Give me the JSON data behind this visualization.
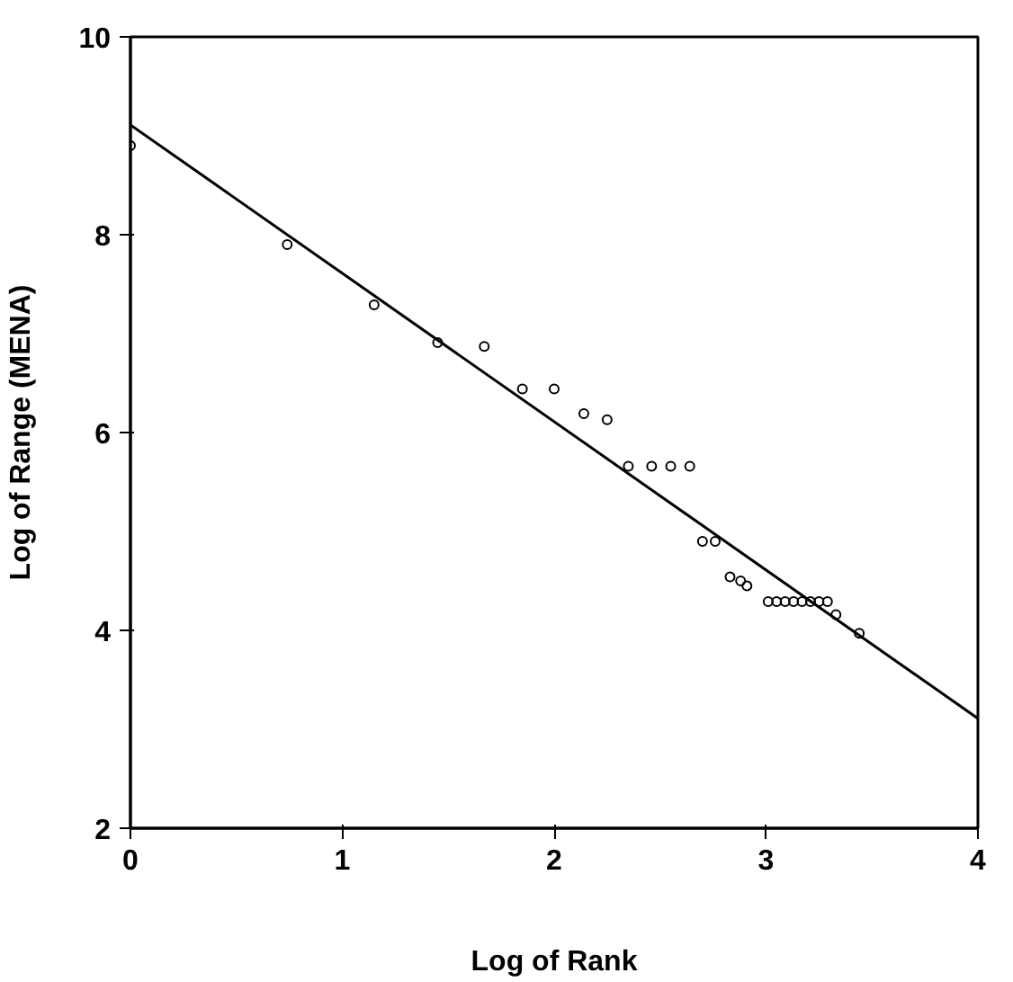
{
  "chart_data": {
    "type": "scatter",
    "xlabel": "Log of Rank",
    "ylabel": "Log of Range (MENA)",
    "xlim": [
      0,
      4
    ],
    "ylim": [
      2,
      10
    ],
    "xticks": [
      0,
      1,
      2,
      3,
      4
    ],
    "yticks": [
      2,
      4,
      6,
      8,
      10
    ],
    "grid": false,
    "marker": "circle",
    "series": [
      {
        "color": "#000000",
        "x": [
          0,
          0.74,
          1.15,
          1.45,
          1.67,
          1.85,
          2.0,
          2.14,
          2.25,
          2.35,
          2.46,
          2.55,
          2.64,
          2.7,
          2.76,
          2.83,
          2.88,
          2.91,
          3.01,
          3.05,
          3.09,
          3.13,
          3.17,
          3.21,
          3.25,
          3.29,
          3.33,
          3.44
        ],
        "values": [
          8.9,
          7.9,
          7.29,
          6.91,
          6.87,
          6.44,
          6.44,
          6.19,
          6.13,
          5.66,
          5.66,
          5.66,
          5.66,
          4.9,
          4.9,
          4.54,
          4.5,
          4.45,
          4.29,
          4.29,
          4.29,
          4.29,
          4.29,
          4.29,
          4.29,
          4.29,
          4.16,
          3.97
        ]
      },
      {
        "type": "line",
        "color": "#000000",
        "x": [
          0,
          4
        ],
        "values": [
          9.11,
          3.11
        ],
        "marker": "none",
        "line_style": "solid"
      }
    ]
  }
}
